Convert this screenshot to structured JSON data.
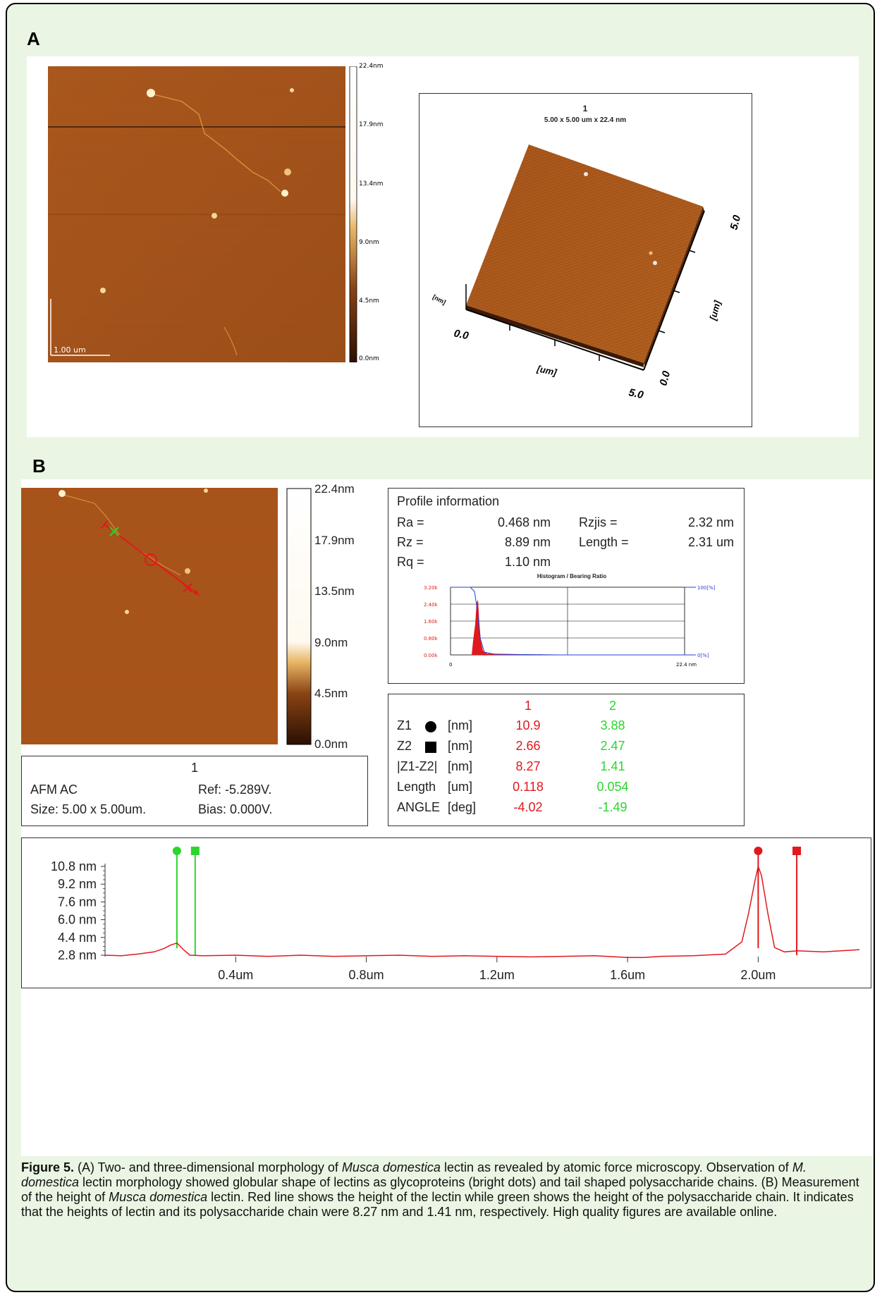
{
  "panel_a": {
    "label": "A",
    "afm2d": {
      "scale_bar": "1.00 um",
      "colorbar_ticks": [
        "22.4nm",
        "17.9nm",
        "13.4nm",
        "9.0nm",
        "4.5nm",
        "0.0nm"
      ]
    },
    "afm3d": {
      "title": "1",
      "subtitle": "5.00 x 5.00 um x 22.4 nm",
      "axis_z": "[nm]",
      "axis_x_unit": "[um]",
      "axis_y_unit": "[um]",
      "x_start": "0.0",
      "x_end": "5.0",
      "y_start": "0.0",
      "y_end": "5.0"
    }
  },
  "panel_b": {
    "label": "B",
    "colorbar_ticks": [
      "22.4nm",
      "17.9nm",
      "13.5nm",
      "9.0nm",
      "4.5nm",
      "0.0nm"
    ],
    "info_box": {
      "title": "1",
      "mode": "AFM AC",
      "size": "Size: 5.00 x 5.00um.",
      "ref": "Ref: -5.289V.",
      "bias": "Bias: 0.000V."
    },
    "profile_info": {
      "title": "Profile information",
      "rows": [
        {
          "k1": "Ra =",
          "v1": "0.468 nm",
          "k2": "Rzjis =",
          "v2": "2.32 nm"
        },
        {
          "k1": "Rz =",
          "v1": "8.89 nm",
          "k2": "Length =",
          "v2": "2.31 um"
        },
        {
          "k1": "Rq =",
          "v1": "1.10 nm",
          "k2": "",
          "v2": ""
        }
      ],
      "histogram": {
        "title": "Histogram / Bearing Ratio",
        "y_ticks": [
          "3.20k",
          "2.40k",
          "1.60k",
          "0.80k",
          "0.00k"
        ],
        "x_start": "0",
        "x_end": "22.4 nm",
        "right_top": "100[%]",
        "right_bottom": "0[%]"
      }
    },
    "measure_table": {
      "col1": "1",
      "col2": "2",
      "rows": [
        {
          "label": "Z1",
          "marker": "circle",
          "unit": "[nm]",
          "v1": "10.9",
          "v2": "3.88"
        },
        {
          "label": "Z2",
          "marker": "square",
          "unit": "[nm]",
          "v1": "2.66",
          "v2": "2.47"
        },
        {
          "label": "|Z1-Z2|",
          "marker": "",
          "unit": "[nm]",
          "v1": "8.27",
          "v2": "1.41"
        },
        {
          "label": "Length",
          "marker": "",
          "unit": "[um]",
          "v1": "0.118",
          "v2": "0.054"
        },
        {
          "label": "ANGLE",
          "marker": "",
          "unit": "[deg]",
          "v1": "-4.02",
          "v2": "-1.49"
        }
      ]
    },
    "profile_plot": {
      "y_ticks": [
        "10.8 nm",
        "9.2 nm",
        "7.6 nm",
        "6.0 nm",
        "4.4 nm",
        "2.8 nm"
      ],
      "x_ticks": [
        "0.4um",
        "0.8um",
        "1.2um",
        "1.6um",
        "2.0um"
      ]
    }
  },
  "caption": {
    "label": "Figure 5.",
    "parts": [
      " (A) Two- and three-dimensional morphology of ",
      "Musca domestica",
      " lectin as revealed by atomic force microscopy. Observation of ",
      "M. domestica",
      " lectin morphology showed globular shape of lectins as glycoproteins (bright dots) and tail shaped polysaccharide chains. (B) Measurement of the height of ",
      "Musca domestica",
      " lectin. Red line shows the height of the lectin while green shows the height of the polysaccharide chain. It indicates that the heights of lectin and its polysaccharide chain were 8.27 nm and 1.41 nm, respectively. High quality figures are available online."
    ]
  },
  "chart_data": {
    "type": "line",
    "title": "",
    "xlabel": "",
    "ylabel": "",
    "xlim": [
      0,
      2.31
    ],
    "ylim": [
      2.8,
      10.8
    ],
    "x_unit": "um",
    "y_unit": "nm",
    "series": [
      {
        "x": [
          0.0,
          0.05,
          0.1,
          0.15,
          0.18,
          0.2,
          0.22,
          0.24,
          0.26,
          0.3,
          0.4,
          0.5,
          0.6,
          0.7,
          0.8,
          0.9,
          1.0,
          1.1,
          1.2,
          1.3,
          1.4,
          1.5,
          1.6,
          1.65,
          1.7,
          1.8,
          1.9,
          1.95,
          1.97,
          1.99,
          2.0,
          2.01,
          2.03,
          2.05,
          2.08,
          2.12,
          2.2,
          2.31
        ],
        "y": [
          2.8,
          2.75,
          2.9,
          3.1,
          3.4,
          3.7,
          3.9,
          3.3,
          2.8,
          2.75,
          2.8,
          2.7,
          2.8,
          2.7,
          2.75,
          2.8,
          2.7,
          2.75,
          2.7,
          2.65,
          2.7,
          2.75,
          2.6,
          2.6,
          2.7,
          2.75,
          2.9,
          4.0,
          6.5,
          9.5,
          10.8,
          10.0,
          6.5,
          3.5,
          3.1,
          3.2,
          3.1,
          3.3
        ]
      }
    ],
    "markers": [
      {
        "name": "Z1",
        "series": "2",
        "x": 0.22
      },
      {
        "name": "Z2",
        "series": "2",
        "x": 0.276
      },
      {
        "name": "Z1",
        "series": "1",
        "x": 2.0
      },
      {
        "name": "Z2",
        "series": "1",
        "x": 2.118
      }
    ]
  }
}
